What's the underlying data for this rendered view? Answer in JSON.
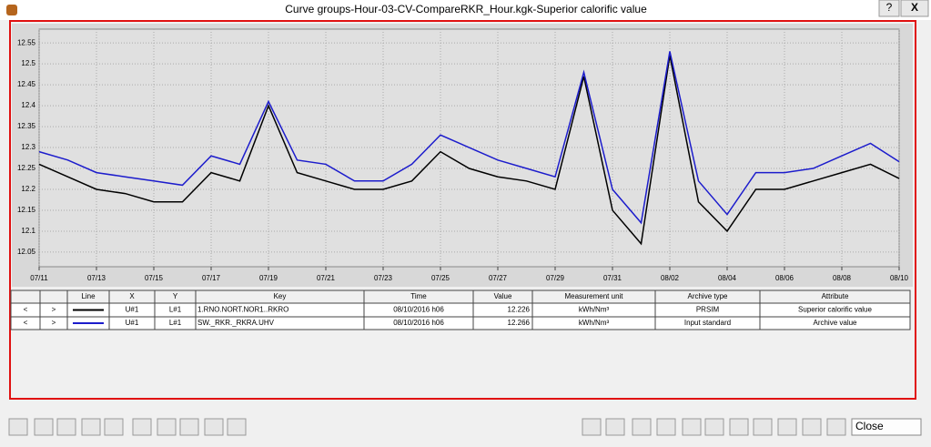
{
  "window": {
    "title": "Curve groups-Hour-03-CV-CompareRKR_Hour.kgk-Superior calorific value",
    "help": "?",
    "close": "X"
  },
  "chart_data": {
    "type": "line",
    "x": [
      "07/11",
      "07/12",
      "07/13",
      "07/14",
      "07/15",
      "07/16",
      "07/17",
      "07/18",
      "07/19",
      "07/20",
      "07/21",
      "07/22",
      "07/23",
      "07/24",
      "07/25",
      "07/26",
      "07/27",
      "07/28",
      "07/29",
      "07/30",
      "07/31",
      "08/01",
      "08/02",
      "08/03",
      "08/04",
      "08/05",
      "08/06",
      "08/07",
      "08/08",
      "08/09",
      "08/10"
    ],
    "series": [
      {
        "name": "1.RNO.NORT.NOR1..RKRO",
        "color": "#000000",
        "values": [
          12.26,
          12.23,
          12.2,
          12.19,
          12.17,
          12.17,
          12.24,
          12.22,
          12.4,
          12.24,
          12.22,
          12.2,
          12.2,
          12.22,
          12.29,
          12.25,
          12.23,
          12.22,
          12.2,
          12.47,
          12.15,
          12.07,
          12.52,
          12.17,
          12.1,
          12.2,
          12.2,
          12.22,
          12.24,
          12.26,
          12.226
        ]
      },
      {
        "name": "SW._RKR._RKRA.UHV",
        "color": "#1c1ccc",
        "values": [
          12.29,
          12.27,
          12.24,
          12.23,
          12.22,
          12.21,
          12.28,
          12.26,
          12.41,
          12.27,
          12.26,
          12.22,
          12.22,
          12.26,
          12.33,
          12.3,
          12.27,
          12.25,
          12.23,
          12.48,
          12.2,
          12.12,
          12.53,
          12.22,
          12.14,
          12.24,
          12.24,
          12.25,
          12.28,
          12.31,
          12.266
        ]
      }
    ],
    "xticks": [
      "07/11",
      "07/13",
      "07/15",
      "07/17",
      "07/19",
      "07/21",
      "07/23",
      "07/25",
      "07/27",
      "07/29",
      "07/31",
      "08/02",
      "08/04",
      "08/06",
      "08/08",
      "08/10"
    ],
    "ylim": [
      12.015,
      12.583
    ],
    "yticks": [
      12.05,
      12.1,
      12.15,
      12.2,
      12.25,
      12.3,
      12.35,
      12.4,
      12.45,
      12.5,
      12.55
    ],
    "grid": true
  },
  "table": {
    "headers": [
      "Line",
      "X",
      "Y",
      "Key",
      "Time",
      "Value",
      "Measurement unit",
      "Archive type",
      "Attribute"
    ],
    "rows": [
      {
        "prev": "<",
        "next": ">",
        "x": "U#1",
        "y": "L#1",
        "time": "08/10/2016 h06",
        "value": "12.226",
        "unit": "kWh/Nm³",
        "archive": "PRSIM",
        "attribute": "Superior calorific value"
      },
      {
        "prev": "<",
        "next": ">",
        "x": "U#1",
        "y": "L#1",
        "time": "08/10/2016 h06",
        "value": "12.266",
        "unit": "kWh/Nm³",
        "archive": "Input standard",
        "attribute": "Archive value"
      }
    ]
  },
  "toolbar": {
    "close": "Close"
  }
}
